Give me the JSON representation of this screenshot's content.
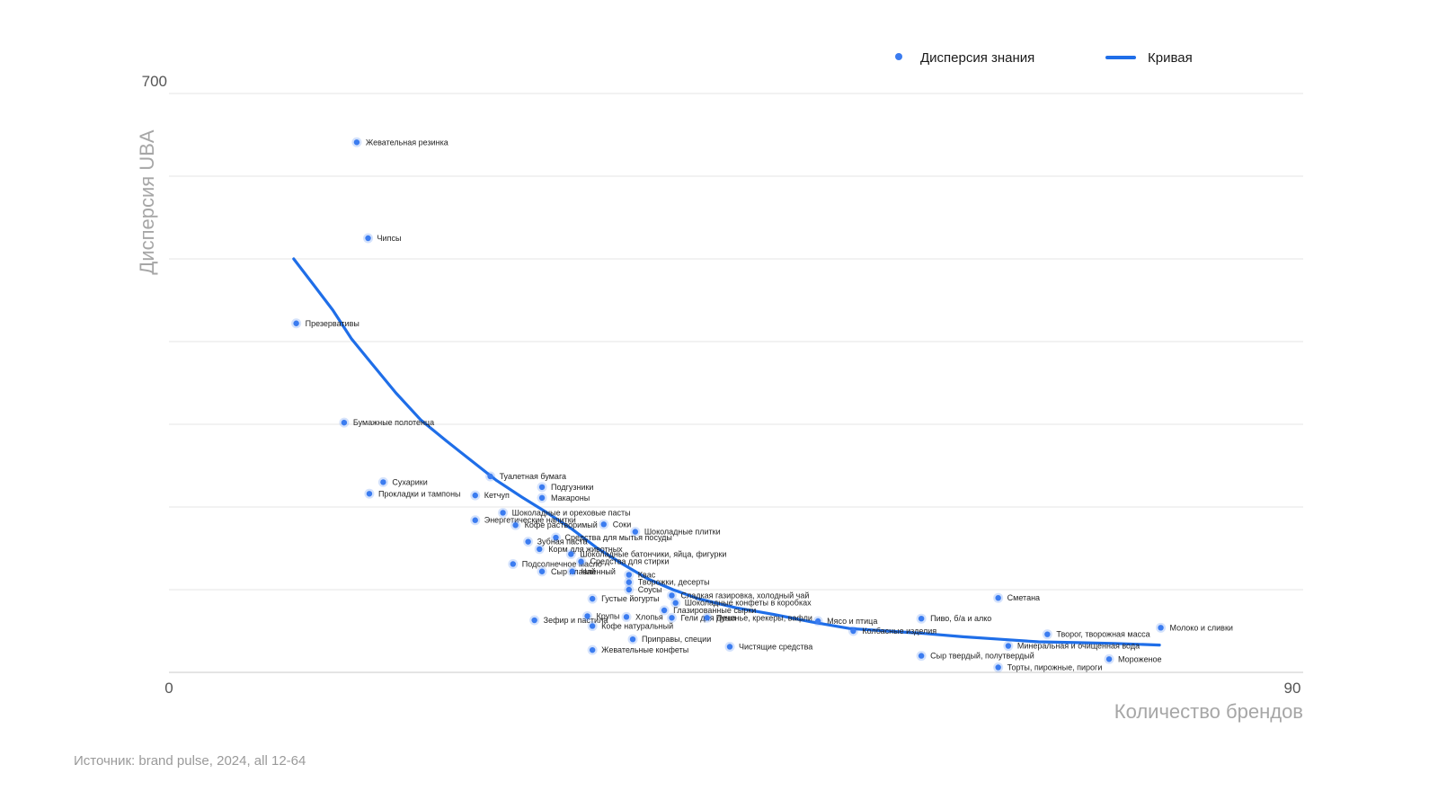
{
  "chart_data": {
    "type": "scatter",
    "xlabel": "Количество брендов",
    "ylabel": "Дисперсия UBA",
    "xlim": [
      0,
      90
    ],
    "ylim": [
      0,
      700
    ],
    "x_tick_labels": [
      "0",
      "90"
    ],
    "y_tick_labels": [
      "700"
    ],
    "grid": true,
    "legend": {
      "position": "top-right",
      "points_label": "Дисперсия знания",
      "curve_label": "Кривая"
    },
    "colors": {
      "points": "#3b7cf0",
      "curve": "#1f6ee8"
    },
    "series": [
      {
        "name": "Дисперсия знания",
        "kind": "points",
        "points": [
          {
            "label": "Жевательная резинка",
            "x": 14.9,
            "y": 641
          },
          {
            "label": "Чипсы",
            "x": 15.8,
            "y": 525
          },
          {
            "label": "Презервативы",
            "x": 10.1,
            "y": 422
          },
          {
            "label": "Бумажные полотенца",
            "x": 13.9,
            "y": 302
          },
          {
            "label": "Сухарики",
            "x": 17.0,
            "y": 230
          },
          {
            "label": "Прокладки и тампоны",
            "x": 15.9,
            "y": 216
          },
          {
            "label": "Туалетная бумага",
            "x": 25.5,
            "y": 237
          },
          {
            "label": "Кетчуп",
            "x": 24.3,
            "y": 214
          },
          {
            "label": "Подгузники",
            "x": 29.6,
            "y": 224
          },
          {
            "label": "Макароны",
            "x": 29.6,
            "y": 211
          },
          {
            "label": "Шоколадные и ореховые пасты",
            "x": 26.5,
            "y": 193
          },
          {
            "label": "Энергетические напитки",
            "x": 24.3,
            "y": 184
          },
          {
            "label": "Кофе растворимый",
            "x": 27.5,
            "y": 178
          },
          {
            "label": "Соки",
            "x": 34.5,
            "y": 179
          },
          {
            "label": "Шоколадные плитки",
            "x": 37.0,
            "y": 170
          },
          {
            "label": "Средства для мытья посуды",
            "x": 30.7,
            "y": 163
          },
          {
            "label": "Зубная паста",
            "x": 28.5,
            "y": 158
          },
          {
            "label": "Корм для животных",
            "x": 29.4,
            "y": 149
          },
          {
            "label": "Шоколадные батончики, яйца, фигурки",
            "x": 31.9,
            "y": 143
          },
          {
            "label": "Подсолнечное масло",
            "x": 27.3,
            "y": 131
          },
          {
            "label": "Средства для стирки",
            "x": 32.7,
            "y": 134
          },
          {
            "label": "Сыр плавленный",
            "x": 29.6,
            "y": 122
          },
          {
            "label": "Чай",
            "x": 32.0,
            "y": 122
          },
          {
            "label": "Квас",
            "x": 36.5,
            "y": 118
          },
          {
            "label": "Творожки, десерты",
            "x": 36.5,
            "y": 109
          },
          {
            "label": "Соусы",
            "x": 36.5,
            "y": 100
          },
          {
            "label": "Сладкая газировка, холодный чай",
            "x": 39.9,
            "y": 93
          },
          {
            "label": "Шоколадные конфеты в коробках",
            "x": 40.2,
            "y": 84
          },
          {
            "label": "Глазированные сырки",
            "x": 39.3,
            "y": 75
          },
          {
            "label": "Густые йогурты",
            "x": 33.6,
            "y": 89
          },
          {
            "label": "Гели для душа",
            "x": 39.9,
            "y": 66
          },
          {
            "label": "Печенье, крекеры, вафли",
            "x": 42.7,
            "y": 66
          },
          {
            "label": "Зефир и пастила",
            "x": 29.0,
            "y": 63
          },
          {
            "label": "Крупы",
            "x": 33.2,
            "y": 68
          },
          {
            "label": "Хлопья",
            "x": 36.3,
            "y": 67
          },
          {
            "label": "Кофе натуральный",
            "x": 33.6,
            "y": 56
          },
          {
            "label": "Приправы, специи",
            "x": 36.8,
            "y": 40
          },
          {
            "label": "Жевательные конфеты",
            "x": 33.6,
            "y": 27
          },
          {
            "label": "Чистящие средства",
            "x": 44.5,
            "y": 31
          },
          {
            "label": "Мясо и птица",
            "x": 51.5,
            "y": 62
          },
          {
            "label": "Колбасные изделия",
            "x": 54.3,
            "y": 50
          },
          {
            "label": "Пиво, б/а и алко",
            "x": 59.7,
            "y": 65
          },
          {
            "label": "Сыр твердый, полутвердый",
            "x": 59.7,
            "y": 20
          },
          {
            "label": "Сметана",
            "x": 65.8,
            "y": 90
          },
          {
            "label": "Минеральная и очищенная вода",
            "x": 66.6,
            "y": 32
          },
          {
            "label": "Торты, пирожные, пироги",
            "x": 65.8,
            "y": 6
          },
          {
            "label": "Творог, творожная масса",
            "x": 69.7,
            "y": 46
          },
          {
            "label": "Мороженое",
            "x": 74.6,
            "y": 16
          },
          {
            "label": "Молоко и сливки",
            "x": 78.7,
            "y": 54
          }
        ]
      },
      {
        "name": "Кривая",
        "kind": "curve",
        "x": [
          9.9,
          11.5,
          13.0,
          14.5,
          16.0,
          18.0,
          20.0,
          22.0,
          24.0,
          26.0,
          28.0,
          30.0,
          32.0,
          34.0,
          36.0,
          38.0,
          40.0,
          42.0,
          45.0,
          48.0,
          51.0,
          54.0,
          57.0,
          60.0,
          63.0,
          66.0,
          69.0,
          72.0,
          75.0,
          78.6
        ],
        "y": [
          500,
          468,
          438,
          403,
          375,
          338,
          305,
          280,
          256,
          232,
          212,
          193,
          173,
          150,
          131,
          113,
          100,
          89,
          78,
          70,
          61,
          53,
          50,
          47,
          43,
          40,
          37,
          36,
          35,
          33
        ]
      }
    ]
  },
  "source": "Источник: brand pulse, 2024, all 12-64"
}
